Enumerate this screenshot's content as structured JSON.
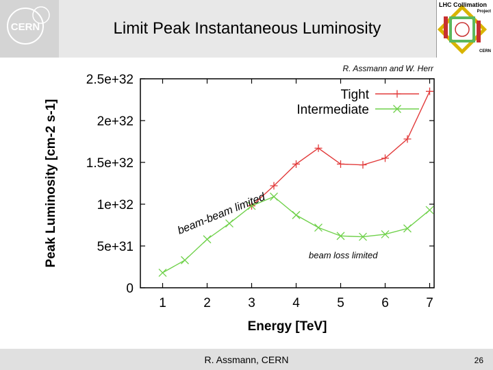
{
  "slide": {
    "title": "Limit Peak Instantaneous Luminosity",
    "credit": "R. Assmann and W. Herr",
    "footer": "R. Assmann, CERN",
    "page_number": "26"
  },
  "logos": {
    "cern": "CERN",
    "lhc_line1": "LHC Collimation",
    "lhc_line2": "Project",
    "lhc_line3": "CERN"
  },
  "colors": {
    "tight": "#e23b3b",
    "intermediate": "#6fd14a",
    "header": "#e8e8e8",
    "footer": "#e0e0e0"
  },
  "chart_data": {
    "type": "line",
    "title": "",
    "xlabel": "Energy [TeV]",
    "ylabel": "Peak Luminosity [cm-2 s-1]",
    "xlim": [
      0.5,
      7.1
    ],
    "ylim": [
      0,
      2.5e+32
    ],
    "x_ticks": [
      1,
      2,
      3,
      4,
      5,
      6,
      7
    ],
    "x_tick_labels": [
      "1",
      "2",
      "3",
      "4",
      "5",
      "6",
      "7"
    ],
    "y_ticks": [
      0,
      5e+31,
      1e+32,
      1.5e+32,
      2e+32,
      2.5e+32
    ],
    "y_tick_labels": [
      "0",
      "5e+31",
      "1e+32",
      "1.5e+32",
      "2e+32",
      "2.5e+32"
    ],
    "legend_position": "top-right",
    "series": [
      {
        "name": "Tight",
        "marker": "plus",
        "x": [
          3,
          3.5,
          4,
          4.5,
          5,
          5.5,
          6,
          6.5,
          7
        ],
        "y": [
          9.8e+31,
          1.22e+32,
          1.48e+32,
          1.67e+32,
          1.48e+32,
          1.47e+32,
          1.55e+32,
          1.78e+32,
          2.35e+32
        ]
      },
      {
        "name": "Intermediate",
        "marker": "x",
        "x": [
          1,
          1.5,
          2,
          2.5,
          3,
          3.5,
          4,
          4.5,
          5,
          5.5,
          6,
          6.5,
          7
        ],
        "y": [
          1.8e+31,
          3.3e+31,
          5.8e+31,
          7.7e+31,
          9.8e+31,
          1.09e+32,
          8.7e+31,
          7.2e+31,
          6.2e+31,
          6.1e+31,
          6.4e+31,
          7.1e+31,
          9.3e+31
        ]
      }
    ],
    "annotations": [
      {
        "text": "beam-beam limited",
        "style": "rotated"
      },
      {
        "text": "beam loss limited",
        "style": "italic"
      }
    ]
  }
}
